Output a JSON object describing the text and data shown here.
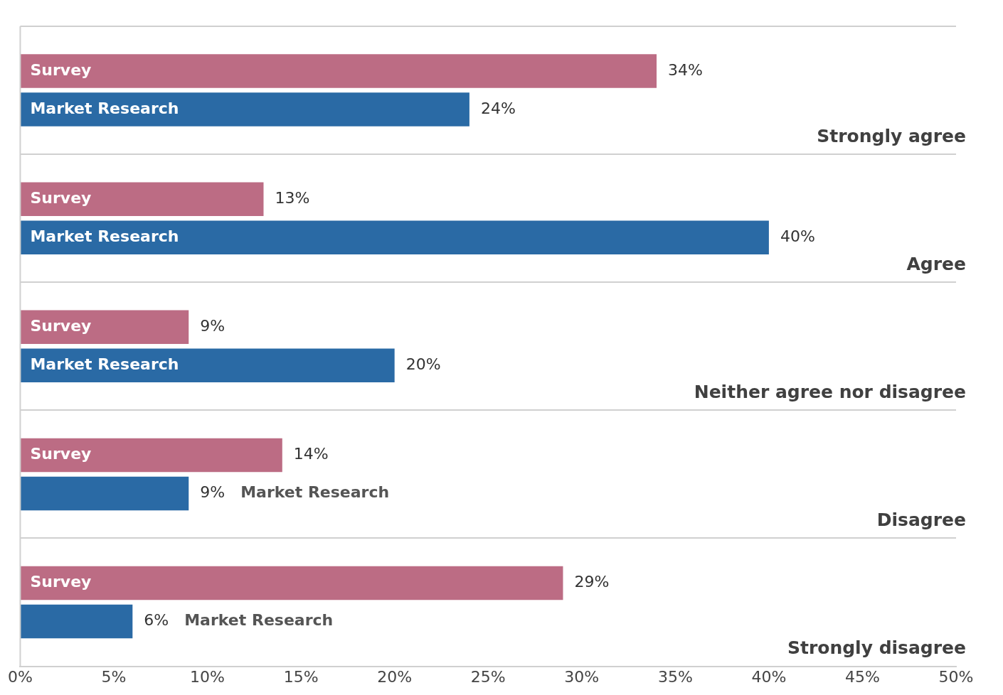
{
  "chart_data": {
    "type": "bar",
    "orientation": "horizontal",
    "categories": [
      "Strongly agree",
      "Agree",
      "Neither agree nor disagree",
      "Disagree",
      "Strongly disagree"
    ],
    "series": [
      {
        "name": "Survey",
        "color": "#bc6c84",
        "values": [
          34,
          13,
          9,
          14,
          29
        ],
        "value_labels": [
          "34%",
          "13%",
          "9%",
          "14%",
          "29%"
        ]
      },
      {
        "name": "Market Research",
        "color": "#2a6aa5",
        "values": [
          24,
          40,
          20,
          9,
          6
        ],
        "value_labels": [
          "24%",
          "40%",
          "20%",
          "9%",
          "6%"
        ]
      }
    ],
    "xlim": [
      0,
      50
    ],
    "xticks": [
      {
        "value": 0,
        "label": "0%"
      },
      {
        "value": 5,
        "label": "5%"
      },
      {
        "value": 10,
        "label": "10%"
      },
      {
        "value": 15,
        "label": "15%"
      },
      {
        "value": 20,
        "label": "20%"
      },
      {
        "value": 25,
        "label": "25%"
      },
      {
        "value": 30,
        "label": "30%"
      },
      {
        "value": 35,
        "label": "35%"
      },
      {
        "value": 40,
        "label": "40%"
      },
      {
        "value": 45,
        "label": "45%"
      },
      {
        "value": 50,
        "label": "50%"
      }
    ],
    "grid": "y",
    "legend": false
  }
}
